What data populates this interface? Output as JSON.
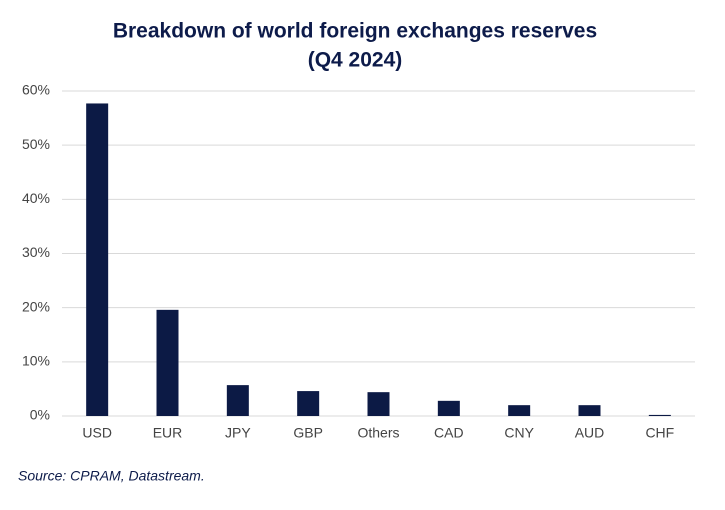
{
  "chart_data": {
    "type": "bar",
    "title": [
      "Breakdown of world foreign exchanges reserves",
      "(Q4 2024)"
    ],
    "categories": [
      "USD",
      "EUR",
      "JPY",
      "GBP",
      "Others",
      "CAD",
      "CNY",
      "AUD",
      "CHF"
    ],
    "values": [
      57.7,
      19.6,
      5.7,
      4.6,
      4.4,
      2.8,
      2.0,
      2.0,
      0.2
    ],
    "color": "#0c1a45",
    "ylim": [
      0,
      60
    ],
    "yticks": [
      {
        "value": 0,
        "label": "0%"
      },
      {
        "value": 10,
        "label": "10%"
      },
      {
        "value": 20,
        "label": "20%"
      },
      {
        "value": 30,
        "label": "30%"
      },
      {
        "value": 40,
        "label": "40%"
      },
      {
        "value": 50,
        "label": "50%"
      },
      {
        "value": 60,
        "label": "60%"
      }
    ],
    "grid": true,
    "source": "Source: CPRAM, Datastream."
  }
}
